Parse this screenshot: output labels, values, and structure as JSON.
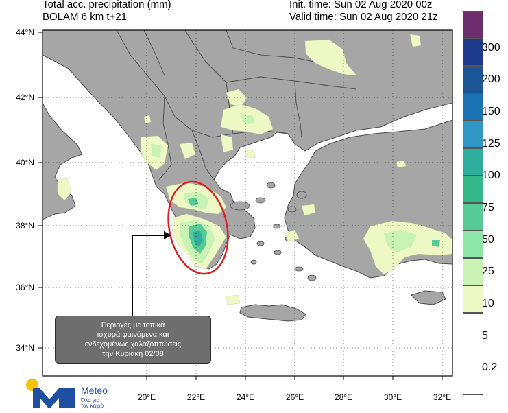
{
  "header": {
    "title_line1": "Total acc. precipitation (mm)",
    "title_line2": "BOLAM 6 km t+21",
    "init_time": "Init. time: Sun 02 Aug 2020 00z",
    "valid_time": "Valid time: Sun 02 Aug 2020 21z"
  },
  "map": {
    "lat_labels": [
      "44°N",
      "42°N",
      "40°N",
      "38°N",
      "36°N",
      "34°N"
    ],
    "lon_labels": [
      "20°E",
      "22°E",
      "24°E",
      "26°E",
      "28°E",
      "30°E",
      "32°E"
    ],
    "colors": {
      "sea": "#ffffff",
      "land": "#a6a6a6",
      "border": "#4a4a4a",
      "frame": "#000000",
      "highlight_ellipse": "#e02020"
    }
  },
  "legend": {
    "labels": [
      "300",
      "200",
      "150",
      "125",
      "100",
      "75",
      "50",
      "25",
      "10",
      "5",
      "0.2"
    ],
    "colors": [
      "#6b2d6b",
      "#1d3a8c",
      "#1c5596",
      "#1a74b4",
      "#2f98c4",
      "#2fae9e",
      "#33b98a",
      "#55c996",
      "#8ee6a8",
      "#c8f3b4",
      "#edf8c4",
      "#ffffff"
    ]
  },
  "annotation": {
    "lines": [
      "Περιοχές με τοπικά",
      "ισχυρά φαινόμενα και",
      "ενδεχομένως χαλαζοπτώσεις",
      "την Κυριακή 02/08"
    ]
  },
  "logo": {
    "name": "Meteo",
    "tagline_line1": "Όλα για",
    "tagline_line2": "τον καιρό",
    "colors": {
      "primary": "#1f4fa0",
      "accent": "#f5c400"
    }
  }
}
